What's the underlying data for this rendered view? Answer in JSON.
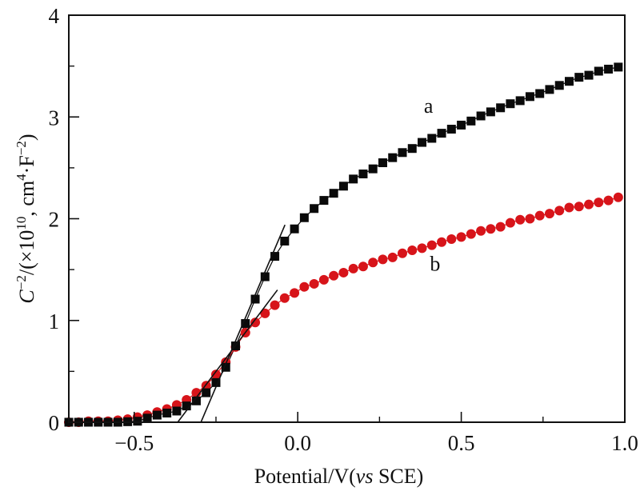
{
  "chart_data": {
    "type": "scatter",
    "title": "",
    "xlabel_parts": [
      {
        "text": "Potential/V(",
        "italic": false
      },
      {
        "text": "vs",
        "italic": true
      },
      {
        "text": " SCE)",
        "italic": false
      }
    ],
    "ylabel_parts": [
      {
        "text": "C",
        "italic": true,
        "sup": false
      },
      {
        "text": "−2",
        "italic": false,
        "sup": true
      },
      {
        "text": "/(×10",
        "italic": false,
        "sup": false
      },
      {
        "text": "10",
        "italic": false,
        "sup": true
      },
      {
        "text": ", cm",
        "italic": false,
        "sup": false
      },
      {
        "text": "4",
        "italic": false,
        "sup": true
      },
      {
        "text": "·F",
        "italic": false,
        "sup": false
      },
      {
        "text": "−2",
        "italic": false,
        "sup": true
      },
      {
        "text": ")",
        "italic": false,
        "sup": false
      }
    ],
    "xlim": [
      -0.7,
      1.0
    ],
    "ylim": [
      0,
      4
    ],
    "xticks": [
      {
        "value": -0.5,
        "label": "−0.5"
      },
      {
        "value": 0.0,
        "label": "0.0"
      },
      {
        "value": 0.5,
        "label": "0.5"
      },
      {
        "value": 1.0,
        "label": "1.0"
      }
    ],
    "xminor": [
      -0.25,
      0.25,
      0.75
    ],
    "yticks": [
      {
        "value": 0,
        "label": "0"
      },
      {
        "value": 1,
        "label": "1"
      },
      {
        "value": 2,
        "label": "2"
      },
      {
        "value": 3,
        "label": "3"
      },
      {
        "value": 4,
        "label": "4"
      }
    ],
    "yminor": [
      0.5,
      1.5,
      2.5,
      3.5
    ],
    "grid": false,
    "x_start": -0.7,
    "x_step": 0.03,
    "series": [
      {
        "name": "a",
        "marker": "square",
        "color": "#0a0a0a",
        "values": [
          0,
          0,
          0,
          0,
          0,
          0,
          0.005,
          0.01,
          0.04,
          0.07,
          0.09,
          0.11,
          0.16,
          0.21,
          0.29,
          0.39,
          0.54,
          0.75,
          0.97,
          1.21,
          1.43,
          1.63,
          1.78,
          1.9,
          2.01,
          2.1,
          2.18,
          2.25,
          2.32,
          2.39,
          2.44,
          2.49,
          2.55,
          2.6,
          2.65,
          2.69,
          2.75,
          2.79,
          2.84,
          2.88,
          2.92,
          2.96,
          3.01,
          3.05,
          3.09,
          3.13,
          3.16,
          3.2,
          3.23,
          3.27,
          3.31,
          3.35,
          3.39,
          3.41,
          3.45,
          3.47,
          3.49
        ]
      },
      {
        "name": "b",
        "marker": "circle",
        "color": "#d7141a",
        "values": [
          0,
          0,
          0.01,
          0.01,
          0.01,
          0.02,
          0.03,
          0.05,
          0.07,
          0.1,
          0.13,
          0.17,
          0.22,
          0.29,
          0.36,
          0.47,
          0.59,
          0.74,
          0.88,
          0.98,
          1.07,
          1.15,
          1.22,
          1.27,
          1.33,
          1.36,
          1.4,
          1.44,
          1.47,
          1.51,
          1.53,
          1.57,
          1.6,
          1.62,
          1.66,
          1.69,
          1.71,
          1.74,
          1.77,
          1.8,
          1.82,
          1.85,
          1.88,
          1.9,
          1.92,
          1.96,
          1.99,
          2.0,
          2.03,
          2.05,
          2.08,
          2.11,
          2.12,
          2.14,
          2.16,
          2.18,
          2.21
        ]
      }
    ],
    "fit_lines": [
      {
        "series": "a",
        "from": [
          -0.296,
          0
        ],
        "to": [
          -0.039,
          1.94
        ]
      },
      {
        "series": "b",
        "from": [
          -0.367,
          0
        ],
        "to": [
          -0.062,
          1.3
        ]
      }
    ],
    "annotations": [
      {
        "text": "a",
        "x": 0.4,
        "y": 3.04
      },
      {
        "text": "b",
        "x": 0.42,
        "y": 1.49
      }
    ]
  }
}
